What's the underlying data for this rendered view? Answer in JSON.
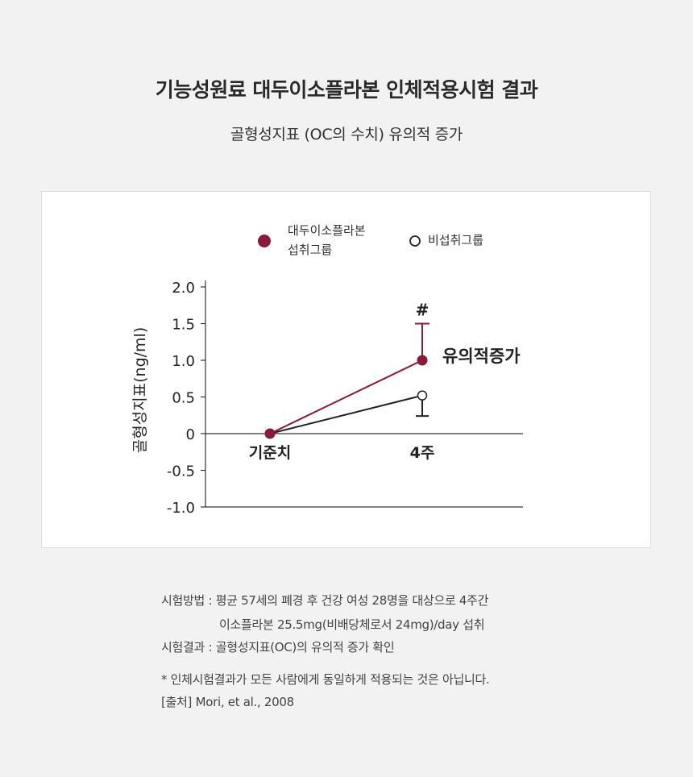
{
  "header": {
    "title": "기능성원료 대두이소플라본 인체적용시험 결과",
    "subtitle": "골형성지표 (OC의 수치) 유의적 증가"
  },
  "legend": {
    "treated_line1": "대두이소플라본",
    "treated_line2": "섭취그룹",
    "control": "비섭취그룹"
  },
  "chart_data": {
    "type": "line",
    "ylabel": "골형성지표(ng/ml)",
    "ylim": [
      -1.0,
      2.0
    ],
    "yticks": [
      "2.0",
      "1.5",
      "1.0",
      "0.5",
      "0",
      "-0.5",
      "-1.0"
    ],
    "ytick_values": [
      2.0,
      1.5,
      1.0,
      0.5,
      0,
      -0.5,
      -1.0
    ],
    "categories": [
      "기준치",
      "4주"
    ],
    "series": [
      {
        "name": "대두이소플라본 섭취그룹",
        "values": [
          0,
          1.0
        ],
        "error_upper": [
          0,
          0.5
        ],
        "color": "#8b1a38",
        "marker": "filled"
      },
      {
        "name": "비섭취그룹",
        "values": [
          0,
          0.52
        ],
        "error_lower": [
          0,
          0.28
        ],
        "color": "#222222",
        "marker": "open"
      }
    ],
    "annotations": {
      "significance_mark": "#",
      "significance_label": "유의적증가"
    },
    "grid": false
  },
  "notes": {
    "method_line1": "시험방법 : 평균 57세의 폐경 후 건강 여성 28명을 대상으로 4주간",
    "method_line2": "이소플라본 25.5mg(비배당체로서 24mg)/day 섭취",
    "result": "시험결과 : 골형성지표(OC)의 유의적 증가 확인",
    "disclaimer": "* 인체시험결과가 모든 사람에게 동일하게 적용되는 것은 아닙니다.",
    "source": "[출처] Mori, et al., 2008"
  }
}
